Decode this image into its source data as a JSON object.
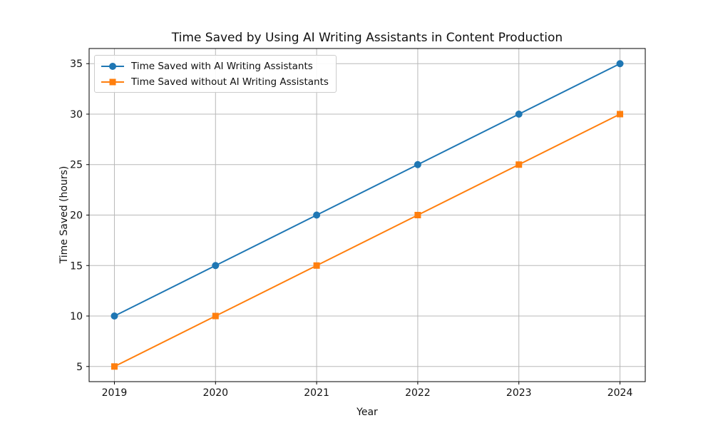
{
  "chart_data": {
    "type": "line",
    "title": "Time Saved by Using AI Writing Assistants in Content Production",
    "xlabel": "Year",
    "ylabel": "Time Saved (hours)",
    "x": [
      2019,
      2020,
      2021,
      2022,
      2023,
      2024
    ],
    "series": [
      {
        "name": "Time Saved with AI Writing Assistants",
        "values": [
          10,
          15,
          20,
          25,
          30,
          35
        ],
        "color": "#1f77b4",
        "marker": "circle"
      },
      {
        "name": "Time Saved without AI Writing Assistants",
        "values": [
          5,
          10,
          15,
          20,
          25,
          30
        ],
        "color": "#ff7f0e",
        "marker": "square"
      }
    ],
    "xticks": [
      2019,
      2020,
      2021,
      2022,
      2023,
      2024
    ],
    "yticks": [
      5,
      10,
      15,
      20,
      25,
      30,
      35
    ],
    "xlim": [
      2018.75,
      2024.25
    ],
    "ylim": [
      3.5,
      36.5
    ],
    "grid": true,
    "legend_position": "upper left",
    "colors": {
      "background": "#ffffff",
      "grid": "#b8b8b8",
      "spine": "#000000",
      "text": "#111111",
      "legend_border": "#cccccc"
    }
  }
}
